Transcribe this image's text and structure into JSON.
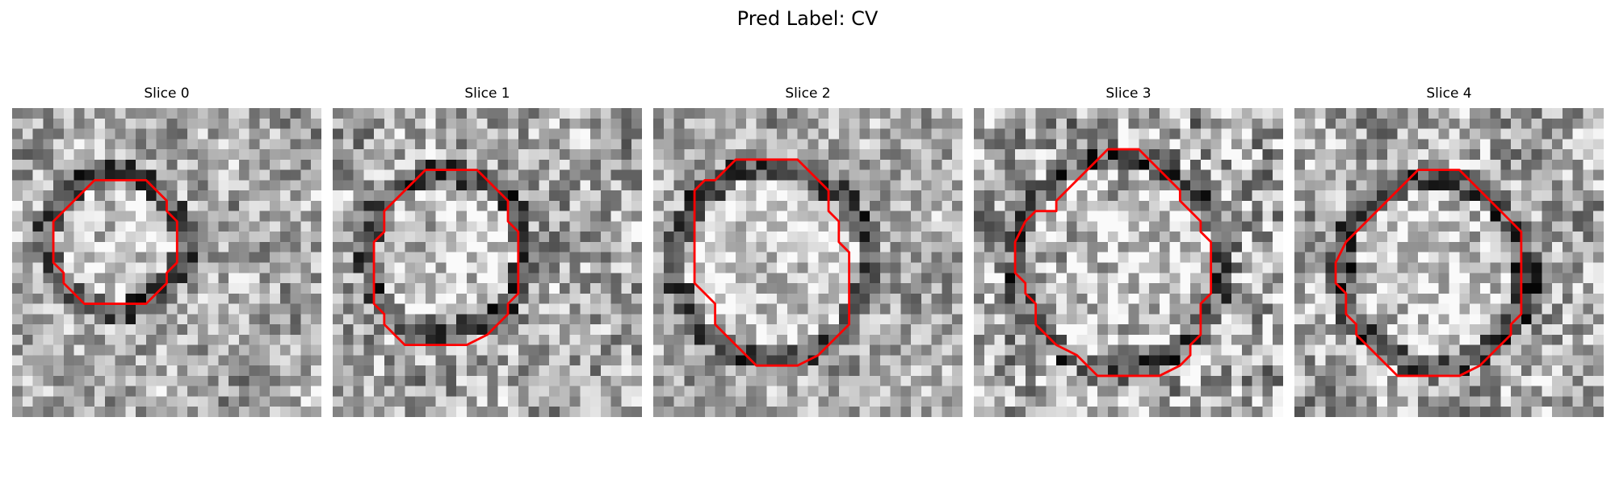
{
  "figure": {
    "title": "Pred Label: CV"
  },
  "panels": [
    {
      "title": "Slice 0",
      "image": "grayscale-microscopy-slice",
      "seed": 11,
      "contrast": 0.55,
      "contour": [
        [
          10,
          7
        ],
        [
          13,
          7
        ],
        [
          14,
          8
        ],
        [
          15,
          9
        ],
        [
          15,
          10
        ],
        [
          16,
          11
        ],
        [
          16,
          13
        ],
        [
          16,
          15
        ],
        [
          15,
          16
        ],
        [
          15,
          17
        ],
        [
          14,
          18
        ],
        [
          13,
          19
        ],
        [
          10,
          19
        ],
        [
          7,
          19
        ],
        [
          6,
          18
        ],
        [
          5,
          17
        ],
        [
          5,
          16
        ],
        [
          4,
          15
        ],
        [
          4,
          13
        ],
        [
          4,
          11
        ],
        [
          5,
          10
        ],
        [
          6,
          9
        ],
        [
          7,
          8
        ],
        [
          8,
          7
        ]
      ],
      "shape": {
        "cx": 10,
        "cy": 13,
        "r": 6.3
      }
    },
    {
      "title": "Slice 1",
      "image": "grayscale-microscopy-slice",
      "seed": 23,
      "contrast": 0.6,
      "contour": [
        [
          11,
          6
        ],
        [
          14,
          6
        ],
        [
          15,
          7
        ],
        [
          16,
          8
        ],
        [
          17,
          9
        ],
        [
          17,
          11
        ],
        [
          18,
          12
        ],
        [
          18,
          15
        ],
        [
          18,
          18
        ],
        [
          17,
          19
        ],
        [
          17,
          20
        ],
        [
          16,
          21
        ],
        [
          15,
          22
        ],
        [
          13,
          23
        ],
        [
          10,
          23
        ],
        [
          7,
          23
        ],
        [
          6,
          22
        ],
        [
          5,
          21
        ],
        [
          5,
          20
        ],
        [
          4,
          19
        ],
        [
          4,
          16
        ],
        [
          4,
          13
        ],
        [
          5,
          12
        ],
        [
          5,
          10
        ],
        [
          6,
          9
        ],
        [
          7,
          8
        ],
        [
          8,
          7
        ],
        [
          9,
          6
        ]
      ],
      "shape": {
        "cx": 11,
        "cy": 14,
        "r": 7.2
      }
    },
    {
      "title": "Slice 2",
      "image": "grayscale-microscopy-slice",
      "seed": 37,
      "contrast": 0.5,
      "contour": [
        [
          10,
          5
        ],
        [
          14,
          5
        ],
        [
          15,
          6
        ],
        [
          16,
          7
        ],
        [
          17,
          8
        ],
        [
          17,
          10
        ],
        [
          18,
          11
        ],
        [
          18,
          13
        ],
        [
          19,
          14
        ],
        [
          19,
          18
        ],
        [
          19,
          21
        ],
        [
          18,
          22
        ],
        [
          17,
          23
        ],
        [
          16,
          24
        ],
        [
          14,
          25
        ],
        [
          12,
          25
        ],
        [
          10,
          25
        ],
        [
          9,
          24
        ],
        [
          8,
          23
        ],
        [
          7,
          22
        ],
        [
          6,
          21
        ],
        [
          6,
          19
        ],
        [
          5,
          18
        ],
        [
          4,
          17
        ],
        [
          4,
          14
        ],
        [
          4,
          10
        ],
        [
          4,
          8
        ],
        [
          5,
          7
        ],
        [
          6,
          7
        ],
        [
          7,
          6
        ],
        [
          8,
          5
        ]
      ],
      "shape": {
        "cx": 11.5,
        "cy": 15,
        "r": 8.8
      }
    },
    {
      "title": "Slice 3",
      "image": "grayscale-microscopy-slice",
      "seed": 51,
      "contrast": 0.75,
      "contour": [
        [
          13,
          4
        ],
        [
          16,
          4
        ],
        [
          17,
          5
        ],
        [
          18,
          6
        ],
        [
          19,
          7
        ],
        [
          20,
          8
        ],
        [
          20,
          9
        ],
        [
          21,
          10
        ],
        [
          22,
          11
        ],
        [
          22,
          12
        ],
        [
          23,
          13
        ],
        [
          23,
          16
        ],
        [
          23,
          18
        ],
        [
          22,
          19
        ],
        [
          22,
          22
        ],
        [
          21,
          23
        ],
        [
          21,
          24
        ],
        [
          20,
          25
        ],
        [
          18,
          26
        ],
        [
          15,
          26
        ],
        [
          12,
          26
        ],
        [
          11,
          25
        ],
        [
          10,
          24
        ],
        [
          8,
          23
        ],
        [
          7,
          22
        ],
        [
          6,
          21
        ],
        [
          6,
          19
        ],
        [
          5,
          18
        ],
        [
          5,
          17
        ],
        [
          4,
          16
        ],
        [
          4,
          13
        ],
        [
          5,
          11
        ],
        [
          6,
          10
        ],
        [
          8,
          10
        ],
        [
          8,
          9
        ],
        [
          9,
          8
        ],
        [
          10,
          7
        ],
        [
          11,
          6
        ],
        [
          12,
          5
        ]
      ],
      "shape": {
        "cx": 14,
        "cy": 15,
        "r": 9.5
      }
    },
    {
      "title": "Slice 4",
      "image": "grayscale-microscopy-slice",
      "seed": 67,
      "contrast": 0.6,
      "contour": [
        [
          13,
          6
        ],
        [
          16,
          6
        ],
        [
          17,
          7
        ],
        [
          18,
          8
        ],
        [
          19,
          9
        ],
        [
          20,
          10
        ],
        [
          21,
          11
        ],
        [
          22,
          12
        ],
        [
          22,
          14
        ],
        [
          22,
          17
        ],
        [
          22,
          20
        ],
        [
          21,
          21
        ],
        [
          21,
          22
        ],
        [
          20,
          23
        ],
        [
          19,
          24
        ],
        [
          18,
          25
        ],
        [
          16,
          26
        ],
        [
          13,
          26
        ],
        [
          10,
          26
        ],
        [
          9,
          25
        ],
        [
          8,
          24
        ],
        [
          7,
          23
        ],
        [
          6,
          22
        ],
        [
          6,
          21
        ],
        [
          5,
          20
        ],
        [
          5,
          18
        ],
        [
          4,
          17
        ],
        [
          4,
          15
        ],
        [
          5,
          13
        ],
        [
          6,
          12
        ],
        [
          7,
          11
        ],
        [
          8,
          10
        ],
        [
          9,
          9
        ],
        [
          10,
          8
        ],
        [
          11,
          7
        ],
        [
          12,
          6
        ]
      ],
      "shape": {
        "cx": 13.5,
        "cy": 16,
        "r": 8.6
      }
    }
  ],
  "colors": {
    "contour": "#ff0000",
    "background": "#ffffff"
  }
}
